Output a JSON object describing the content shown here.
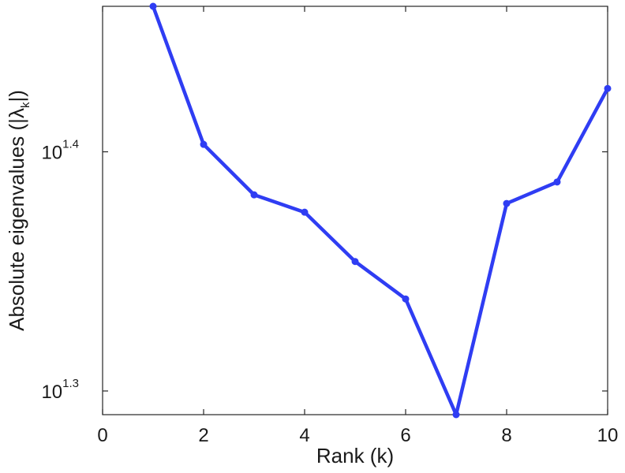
{
  "chart_data": {
    "type": "line",
    "yscale": "log",
    "xlabel": "Rank (k)",
    "ylabel": "Absolute eigenvalues (|λ",
    "ylabel_sub": "k",
    "ylabel_tail": "|)",
    "xlim": [
      0,
      10
    ],
    "ylim": [
      19.5,
      28.9
    ],
    "xticks": [
      "0",
      "2",
      "4",
      "6",
      "8",
      "10"
    ],
    "yticks": [
      {
        "base": "10",
        "exp": "1.3",
        "value": 19.95
      },
      {
        "base": "10",
        "exp": "1.4",
        "value": 25.12
      }
    ],
    "series": [
      {
        "color": "#2f3df3",
        "x": [
          1,
          2,
          3,
          4,
          5,
          6,
          7,
          8,
          9,
          10
        ],
        "y": [
          28.9,
          25.3,
          24.1,
          23.7,
          22.6,
          21.8,
          19.5,
          23.9,
          24.4,
          26.7
        ]
      }
    ],
    "grid": false,
    "legend": "none"
  }
}
